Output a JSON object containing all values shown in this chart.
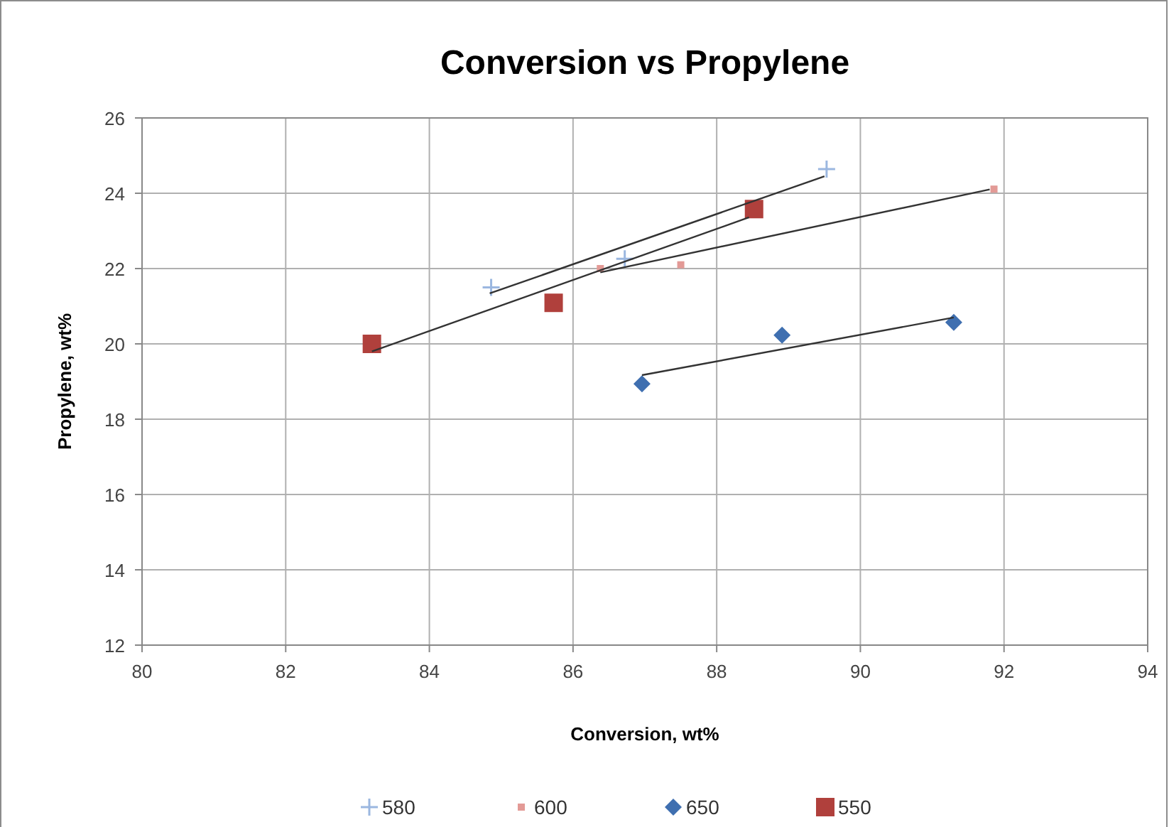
{
  "chart_data": {
    "type": "scatter",
    "title": "Conversion vs Propylene",
    "xlabel": "Conversion, wt%",
    "ylabel": "Propylene, wt%",
    "xlim": [
      80,
      94
    ],
    "xticks": [
      80,
      82,
      84,
      86,
      88,
      90,
      92,
      94
    ],
    "ylim": [
      12,
      26
    ],
    "yticks": [
      12,
      14,
      16,
      18,
      20,
      22,
      24,
      26
    ],
    "grid": true,
    "legend": "bottom",
    "series": [
      {
        "name": "580",
        "color": "#9bb7e0",
        "marker": "cross",
        "x": [
          84.86,
          86.72,
          89.53
        ],
        "values": [
          21.5,
          22.26,
          24.64
        ]
      },
      {
        "name": "600",
        "color": "#e39a96",
        "marker": "square",
        "x": [
          86.38,
          87.5,
          91.86
        ],
        "values": [
          22.0,
          22.1,
          24.11
        ]
      },
      {
        "name": "650",
        "color": "#3f6fb0",
        "marker": "diamond",
        "x": [
          86.96,
          88.91,
          91.3
        ],
        "values": [
          18.94,
          20.23,
          20.57
        ]
      },
      {
        "name": "550",
        "color": "#b0403c",
        "marker": "square",
        "x": [
          83.2,
          85.73,
          88.52
        ],
        "values": [
          20.0,
          21.09,
          23.58
        ]
      },
      {
        "type": "line",
        "color": "#333333",
        "marker": "none",
        "x": [
          84.84,
          89.5
        ],
        "values": [
          21.34,
          24.45
        ]
      },
      {
        "type": "line",
        "color": "#333333",
        "marker": "none",
        "x": [
          86.38,
          91.8
        ],
        "values": [
          21.9,
          24.1
        ]
      },
      {
        "type": "line",
        "color": "#333333",
        "marker": "none",
        "x": [
          86.96,
          91.3
        ],
        "values": [
          19.17,
          20.7
        ]
      },
      {
        "type": "line",
        "color": "#333333",
        "marker": "none",
        "x": [
          83.2,
          88.45
        ],
        "values": [
          19.8,
          23.36
        ]
      }
    ]
  }
}
